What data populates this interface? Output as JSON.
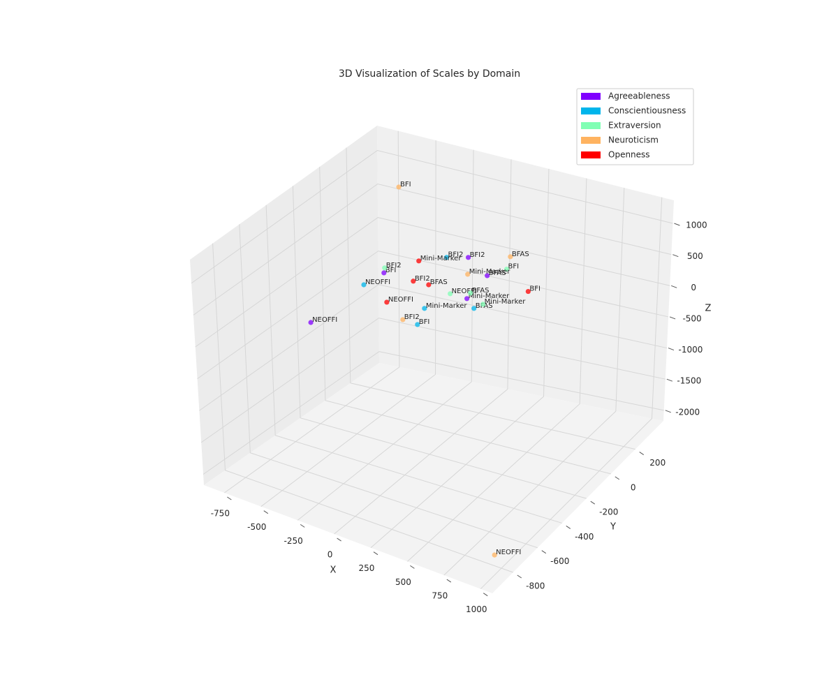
{
  "chart_data": {
    "type": "scatter3d",
    "title": "3D Visualization of Scales by Domain",
    "x_label": "X",
    "y_label": "Y",
    "z_label": "Z",
    "xlim": [
      -890,
      1080
    ],
    "ylim": [
      -970,
      430
    ],
    "zlim": [
      -2170,
      1370
    ],
    "xticks": [
      -750,
      -500,
      -250,
      0,
      250,
      500,
      750,
      1000
    ],
    "yticks": [
      -800,
      -600,
      -400,
      -200,
      0,
      200
    ],
    "zticks": [
      -2000,
      -1500,
      -1000,
      -500,
      0,
      500,
      1000
    ],
    "grid": true,
    "legend": "upper right",
    "series": [
      {
        "name": "Agreeableness",
        "color": "#8000ff",
        "labels": [
          "BFI2",
          "BFAS",
          "BFI",
          "Mini-Marker",
          "NEOFFI"
        ],
        "x": [
          325,
          450,
          -235,
          316,
          -735
        ],
        "y": [
          -270,
          -270,
          -270,
          -270,
          -270
        ],
        "z": [
          1216,
          1020,
          589,
          570,
          -513
        ]
      },
      {
        "name": "Conscientiousness",
        "color": "#00b5eb",
        "labels": [
          "BFI2",
          "NEOFFI",
          "Mini-Marker",
          "BFAS",
          "BFI"
        ],
        "x": [
          182,
          -371,
          33,
          363,
          -15
        ],
        "y": [
          -270,
          -270,
          -270,
          -270,
          -270
        ],
        "z": [
          1117,
          312,
          223,
          450,
          -59
        ]
      },
      {
        "name": "Extraversion",
        "color": "#80ffb4",
        "labels": [
          "BFI",
          "BFI2",
          "NEOFFI",
          "BFAS",
          "Mini-Marker"
        ],
        "x": [
          578,
          -230,
          205,
          339,
          423
        ],
        "y": [
          -270,
          -270,
          -270,
          -270,
          -270
        ],
        "z": [
          1211,
          669,
          569,
          673,
          556
        ]
      },
      {
        "name": "Neuroticism",
        "color": "#ffb360",
        "labels": [
          "BFI",
          "BFAS",
          "Mini-Marker",
          "BFI2",
          "NEOFFI"
        ],
        "x": [
          -624,
          363,
          321,
          -113,
          978
        ],
        "y": [
          290,
          10,
          -270,
          -270,
          -830
        ],
        "z": [
          803,
          779,
          952,
          -50,
          -1927
        ]
      },
      {
        "name": "Openness",
        "color": "#ff0000",
        "labels": [
          "Mini-Marker",
          "BFI2",
          "BFAS",
          "NEOFFI",
          "BFI"
        ],
        "x": [
          -2,
          -40,
          62,
          -219,
          721
        ],
        "y": [
          -270,
          -270,
          -270,
          -270,
          -270
        ],
        "z": [
          934,
          595,
          609,
          147,
          963
        ]
      }
    ]
  }
}
